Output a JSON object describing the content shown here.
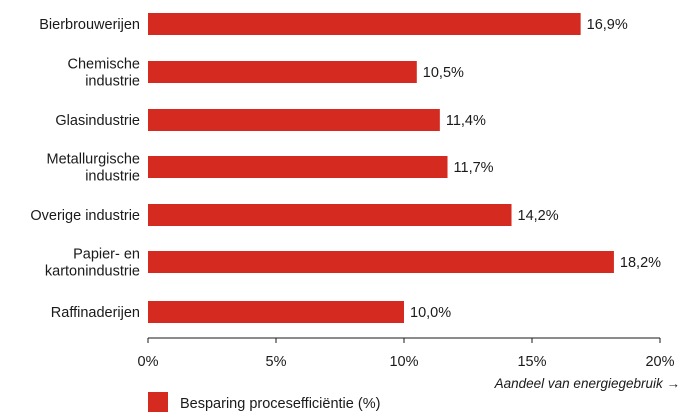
{
  "chart_data": {
    "type": "bar",
    "orientation": "horizontal",
    "categories": [
      [
        "Bierbrouwerijen"
      ],
      [
        "Chemische",
        "industrie"
      ],
      [
        "Glasindustrie"
      ],
      [
        "Metallurgische",
        "industrie"
      ],
      [
        "Overige industrie"
      ],
      [
        "Papier- en",
        "kartonindustrie"
      ],
      [
        "Raffinaderijen"
      ]
    ],
    "values": [
      16.9,
      10.5,
      11.4,
      11.7,
      14.2,
      18.2,
      10.0
    ],
    "value_labels": [
      "16,9%",
      "10,5%",
      "11,4%",
      "11,7%",
      "14,2%",
      "18,2%",
      "10,0%"
    ],
    "xlim": [
      0,
      20
    ],
    "xticks": [
      0,
      5,
      10,
      15,
      20
    ],
    "xtick_labels": [
      "0%",
      "5%",
      "10%",
      "15%",
      "20%"
    ],
    "xlabel": "Aandeel van energiegebruik →",
    "ylabel": "",
    "title": "",
    "grid": false,
    "legend_position": "bottom-left",
    "series": [
      {
        "name": "Besparing procesefficiëntie (%)",
        "color": "#d42a1f"
      }
    ]
  }
}
